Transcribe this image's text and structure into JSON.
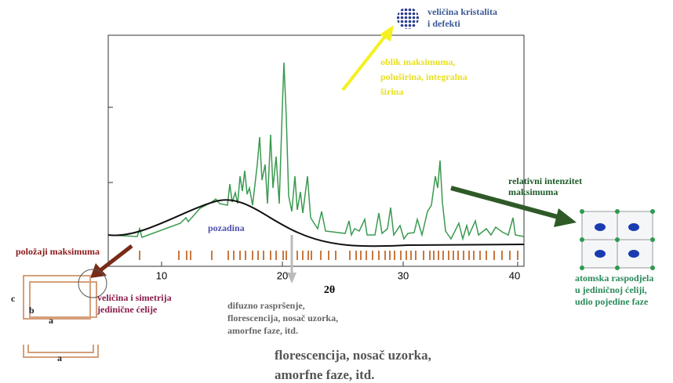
{
  "crystallite": {
    "lines": [
      "veličina kristalita",
      "i defekti"
    ]
  },
  "peak_shape": {
    "lines": [
      "oblik maksimuma,",
      "poluširina, integralna",
      "širina"
    ]
  },
  "intensity": {
    "lines": [
      "relativni intenzitet",
      "maksimuma"
    ]
  },
  "background": "pozadina",
  "positions": "položaji maksimuma",
  "cell": {
    "lines": [
      "veličina i simetrija",
      "jedinične ćelije"
    ],
    "edges": [
      "c",
      "b",
      "a",
      "a"
    ]
  },
  "axis": {
    "ticks": [
      "10",
      "20",
      "30",
      "40"
    ],
    "label": "2θ"
  },
  "diffuse": {
    "lines": [
      "difuzno raspršenje,",
      "florescencija, nosač uzorka,",
      "amorfne faze, itd."
    ]
  },
  "diffuse_large": {
    "lines": [
      "florescencija, nosač uzorka,",
      "amorfne faze, itd."
    ]
  },
  "atoms": {
    "lines": [
      "atomska raspodjela",
      "u jediničnoj ćeliji,",
      "udio pojedine faze"
    ]
  }
}
